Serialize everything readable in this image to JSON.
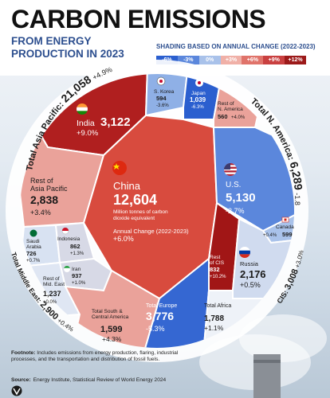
{
  "title": "CARBON EMISSIONS",
  "subtitle": "FROM ENERGY PRODUCTION IN 2023",
  "scale": {
    "title": "SHADING BASED ON ANNUAL CHANGE (2022-2023)",
    "steps": [
      {
        "label": "-6%",
        "color": "#2b5fcf"
      },
      {
        "label": "-3%",
        "color": "#5b87dc"
      },
      {
        "label": "0%",
        "color": "#a9c2ea"
      },
      {
        "label": "+3%",
        "color": "#f0b0a7"
      },
      {
        "label": "+6%",
        "color": "#e0736a"
      },
      {
        "label": "+9%",
        "color": "#c94040"
      },
      {
        "label": "+12%",
        "color": "#9c1a1a"
      }
    ]
  },
  "regions": {
    "asia_pacific": {
      "label": "Total Asia Pacific:",
      "value": "21,058",
      "change": "+4.9%"
    },
    "north_america": {
      "label": "Total N. America:",
      "value": "6,289",
      "change": "-1.8%"
    },
    "cis": {
      "label": "CIS:",
      "value": "3,008",
      "change": "+3.0%"
    },
    "middle_east": {
      "label": "Total Middle East:",
      "value": "2,900",
      "change": "+0.4%"
    }
  },
  "cells": {
    "india": {
      "name": "India",
      "value": "3,122",
      "change": "+9.0%"
    },
    "south_korea": {
      "name": "S. Korea",
      "value": "594",
      "change": "-3.6%"
    },
    "japan": {
      "name": "Japan",
      "value": "1,039",
      "change": "-6.3%"
    },
    "rest_na": {
      "name": "Rest of N. America",
      "value": "560",
      "change": "+4.0%"
    },
    "rest_asia": {
      "name": "Rest of Asia Pacific",
      "value": "2,838",
      "change": "+3.4%"
    },
    "china": {
      "name": "China",
      "value": "12,604",
      "unit": "Million tonnes of carbon dioxide equivalent",
      "change_label": "Annual Change (2022-2023)",
      "change": "+6.0%"
    },
    "us": {
      "name": "U.S.",
      "value": "5,130",
      "change": "-2.7%"
    },
    "canada": {
      "name": "Canada",
      "value": "599",
      "change": "+0.4%"
    },
    "saudi": {
      "name": "Saudi Arabia",
      "value": "726",
      "change": "+0.7%"
    },
    "indonesia": {
      "name": "Indonesia",
      "value": "862",
      "change": "+1.3%"
    },
    "iran": {
      "name": "Iran",
      "value": "937",
      "change": "+1.0%"
    },
    "rest_me": {
      "name": "Rest of Mid. East",
      "value": "1,237",
      "change": "+0.0%"
    },
    "rest_cis": {
      "name": "Rest of CIS",
      "value": "832",
      "change": "+10.2%"
    },
    "russia": {
      "name": "Russia",
      "value": "2,176",
      "change": "+0.5%"
    },
    "south_america": {
      "name": "Total South & Central America",
      "value": "1,599",
      "change": "+4.3%"
    },
    "europe": {
      "name": "Total Europe",
      "value": "3,776",
      "change": "-5.3%"
    },
    "africa": {
      "name": "Total Africa",
      "value": "1,788",
      "change": "+1.1%"
    }
  },
  "footnote": {
    "label": "Footnote:",
    "text": "Includes emissions from energy production, flaring, industrial processes, and the transportation and distribution of fossil fuels."
  },
  "source": {
    "label": "Source:",
    "text": "Energy Institute, Statistical Review of World Energy 2024"
  }
}
